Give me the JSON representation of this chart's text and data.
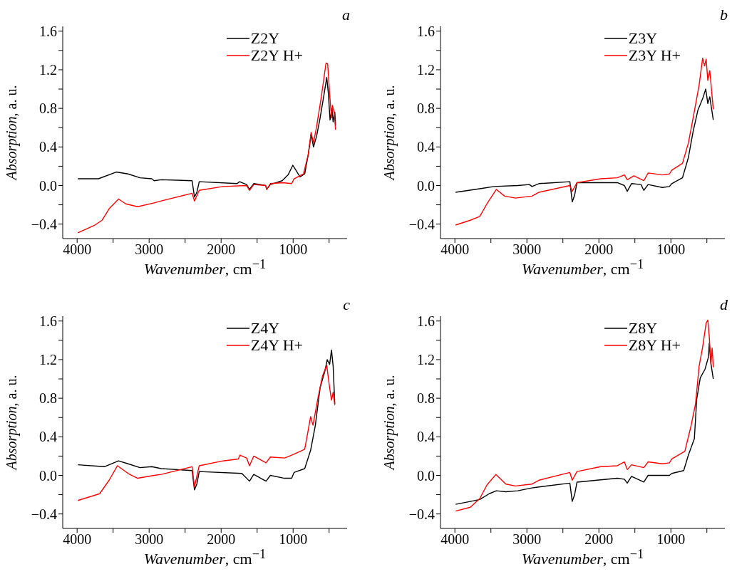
{
  "chart_data": [
    {
      "type": "line",
      "title": "a",
      "xlabel": "Wavenumber, cm$^{−1}$",
      "ylabel": "Absorption, a. u.",
      "xlim": [
        4200,
        250
      ],
      "ylim": [
        -0.55,
        1.65
      ],
      "xticks": [
        4000,
        {
          "value": 3500,
          "label": null
        },
        3000,
        {
          "value": 2500,
          "label": null
        },
        2000,
        {
          "value": 1500,
          "label": null
        },
        1000,
        {
          "value": 500,
          "label": null
        }
      ],
      "yticks": [
        -0.4,
        {
          "value": -0.2,
          "label": null
        },
        {
          "value": 0,
          "label": "0.0"
        },
        {
          "value": 0.2,
          "label": null
        },
        0.4,
        {
          "value": 0.6,
          "label": null
        },
        0.8,
        {
          "value": 1.0,
          "label": null
        },
        1.2,
        {
          "value": 1.4,
          "label": null
        },
        1.6
      ],
      "legend": "top right",
      "series": [
        {
          "name": "Z2Y",
          "color": "#000000",
          "x": [
            3990,
            3704,
            3457,
            3292,
            3127,
            2963,
            2930,
            2831,
            2403,
            2370,
            2337,
            2304,
            1777,
            1744,
            1646,
            1606,
            1547,
            1382,
            1366,
            1316,
            1152,
            1070,
            1004,
            954,
            905,
            839,
            790,
            750,
            717,
            674,
            625,
            576,
            533,
            510,
            487,
            460,
            444,
            421,
            411
          ],
          "values": [
            0.07,
            0.07,
            0.14,
            0.12,
            0.08,
            0.07,
            0.05,
            0.06,
            0.05,
            -0.12,
            -0.07,
            0.04,
            0.02,
            0.04,
            0.01,
            -0.04,
            0.02,
            0.0,
            -0.04,
            0.01,
            0.05,
            0.11,
            0.21,
            0.15,
            0.09,
            0.12,
            0.32,
            0.53,
            0.4,
            0.51,
            0.7,
            0.92,
            1.12,
            0.95,
            0.68,
            0.8,
            0.66,
            0.76,
            0.63
          ]
        },
        {
          "name": "Z2Y H+",
          "color": "#ff0000",
          "x": [
            3990,
            3753,
            3654,
            3555,
            3424,
            3325,
            3160,
            2930,
            2831,
            2403,
            2370,
            2304,
            1975,
            1646,
            1606,
            1547,
            1382,
            1366,
            1316,
            1152,
            1020,
            987,
            856,
            790,
            750,
            717,
            674,
            608,
            543,
            520,
            493,
            467,
            454,
            427,
            411
          ],
          "values": [
            -0.49,
            -0.41,
            -0.36,
            -0.24,
            -0.14,
            -0.19,
            -0.22,
            -0.18,
            -0.16,
            -0.08,
            -0.16,
            -0.05,
            -0.01,
            0.0,
            -0.05,
            0.01,
            0.0,
            -0.04,
            0.02,
            0.03,
            0.02,
            0.07,
            0.12,
            0.32,
            0.55,
            0.44,
            0.61,
            0.92,
            1.27,
            1.26,
            0.95,
            0.7,
            0.83,
            0.75,
            0.58
          ]
        }
      ]
    },
    {
      "type": "line",
      "title": "b",
      "xlabel": "Wavenumber, cm$^{−1}$",
      "ylabel": "Absorption, a. u.",
      "xlim": [
        4200,
        250
      ],
      "ylim": [
        -0.55,
        1.65
      ],
      "xticks": [
        4000,
        {
          "value": 3500,
          "label": null
        },
        3000,
        {
          "value": 2500,
          "label": null
        },
        2000,
        {
          "value": 1500,
          "label": null
        },
        1000,
        {
          "value": 500,
          "label": null
        }
      ],
      "yticks": [
        -0.4,
        {
          "value": -0.2,
          "label": null
        },
        {
          "value": 0,
          "label": "0.0"
        },
        {
          "value": 0.2,
          "label": null
        },
        0.4,
        {
          "value": 0.6,
          "label": null
        },
        0.8,
        {
          "value": 1.0,
          "label": null
        },
        1.2,
        {
          "value": 1.4,
          "label": null
        },
        1.6
      ],
      "legend": "top right",
      "series": [
        {
          "name": "Z3Y",
          "color": "#000000",
          "x": [
            3990,
            3621,
            3457,
            3127,
            2963,
            2930,
            2831,
            2403,
            2370,
            2337,
            2304,
            1744,
            1646,
            1606,
            1547,
            1415,
            1376,
            1316,
            1119,
            1020,
            987,
            839,
            757,
            691,
            625,
            559,
            516,
            487,
            460,
            411
          ],
          "values": [
            -0.07,
            -0.03,
            -0.01,
            0.0,
            0.01,
            -0.01,
            0.02,
            0.04,
            -0.17,
            -0.1,
            0.03,
            0.03,
            0.0,
            -0.06,
            0.02,
            0.01,
            -0.05,
            0.01,
            -0.02,
            -0.01,
            0.02,
            0.08,
            0.29,
            0.56,
            0.78,
            0.9,
            1.0,
            0.85,
            0.92,
            0.68
          ]
        },
        {
          "name": "Z3Y H+",
          "color": "#ff0000",
          "x": [
            3990,
            3786,
            3654,
            3555,
            3424,
            3309,
            3160,
            2930,
            2831,
            2403,
            2370,
            2304,
            1975,
            1744,
            1646,
            1606,
            1514,
            1376,
            1316,
            1119,
            1020,
            987,
            839,
            757,
            691,
            608,
            559,
            533,
            510,
            487,
            460,
            411
          ],
          "values": [
            -0.41,
            -0.36,
            -0.32,
            -0.19,
            -0.04,
            -0.11,
            -0.13,
            -0.11,
            -0.07,
            0.0,
            -0.06,
            0.03,
            0.07,
            0.08,
            0.11,
            0.06,
            0.1,
            0.05,
            0.13,
            0.11,
            0.12,
            0.16,
            0.23,
            0.44,
            0.7,
            1.04,
            1.32,
            1.24,
            1.31,
            1.09,
            1.19,
            0.79
          ]
        }
      ]
    },
    {
      "type": "line",
      "title": "c",
      "xlabel": "Wavenumber, cm$^{−1}$",
      "ylabel": "Absorption, a. u.",
      "xlim": [
        4200,
        250
      ],
      "ylim": [
        -0.55,
        1.65
      ],
      "xticks": [
        4000,
        {
          "value": 3500,
          "label": null
        },
        3000,
        {
          "value": 2500,
          "label": null
        },
        2000,
        {
          "value": 1500,
          "label": null
        },
        1000,
        {
          "value": 500,
          "label": null
        }
      ],
      "yticks": [
        -0.4,
        {
          "value": -0.2,
          "label": null
        },
        {
          "value": 0,
          "label": "0.0"
        },
        {
          "value": 0.2,
          "label": null
        },
        0.4,
        {
          "value": 0.6,
          "label": null
        },
        0.8,
        {
          "value": 1.0,
          "label": null
        },
        1.2,
        {
          "value": 1.4,
          "label": null
        },
        1.6
      ],
      "legend": "top right",
      "series": [
        {
          "name": "Z4Y",
          "color": "#000000",
          "x": [
            3990,
            3621,
            3424,
            3292,
            3127,
            2963,
            2831,
            2403,
            2370,
            2337,
            2304,
            1712,
            1606,
            1547,
            1376,
            1316,
            1119,
            1020,
            987,
            839,
            757,
            691,
            625,
            559,
            526,
            493,
            467,
            444,
            421
          ],
          "values": [
            0.11,
            0.09,
            0.15,
            0.12,
            0.08,
            0.09,
            0.07,
            0.05,
            -0.15,
            -0.09,
            0.04,
            0.02,
            -0.06,
            0.01,
            -0.06,
            0.0,
            -0.03,
            -0.03,
            0.03,
            0.07,
            0.26,
            0.52,
            0.91,
            1.08,
            1.2,
            1.15,
            1.3,
            1.13,
            0.74
          ]
        },
        {
          "name": "Z4Y H+",
          "color": "#ff0000",
          "x": [
            3990,
            3687,
            3555,
            3440,
            3292,
            3160,
            2930,
            2831,
            2403,
            2370,
            2304,
            1975,
            1761,
            1738,
            1646,
            1606,
            1547,
            1376,
            1316,
            1119,
            1020,
            839,
            790,
            757,
            724,
            658,
            592,
            533,
            493,
            467,
            444,
            421
          ],
          "values": [
            -0.26,
            -0.19,
            -0.05,
            0.1,
            0.02,
            -0.03,
            0.0,
            0.01,
            0.09,
            -0.12,
            0.1,
            0.15,
            0.17,
            0.21,
            0.18,
            0.1,
            0.2,
            0.13,
            0.19,
            0.18,
            0.21,
            0.27,
            0.47,
            0.61,
            0.52,
            0.79,
            1.03,
            1.14,
            0.91,
            0.78,
            0.86,
            0.73
          ]
        }
      ]
    },
    {
      "type": "line",
      "title": "d",
      "xlabel": "Wavenumber, cm$^{−1}$",
      "ylabel": "Absorption, a. u.",
      "xlim": [
        4200,
        250
      ],
      "ylim": [
        -0.55,
        1.65
      ],
      "xticks": [
        4000,
        {
          "value": 3500,
          "label": null
        },
        3000,
        {
          "value": 2500,
          "label": null
        },
        2000,
        {
          "value": 1500,
          "label": null
        },
        1000,
        {
          "value": 500,
          "label": null
        }
      ],
      "yticks": [
        -0.4,
        {
          "value": -0.2,
          "label": null
        },
        {
          "value": 0,
          "label": "0.0"
        },
        {
          "value": 0.2,
          "label": null
        },
        0.4,
        {
          "value": 0.6,
          "label": null
        },
        0.8,
        {
          "value": 1.0,
          "label": null
        },
        1.2,
        {
          "value": 1.4,
          "label": null
        },
        1.6
      ],
      "legend": "top right",
      "series": [
        {
          "name": "Z8Y",
          "color": "#000000",
          "x": [
            3990,
            3786,
            3654,
            3523,
            3424,
            3292,
            3127,
            2930,
            2831,
            2403,
            2370,
            2337,
            2304,
            1744,
            1646,
            1606,
            1547,
            1376,
            1316,
            1119,
            1020,
            987,
            822,
            757,
            674,
            641,
            592,
            526,
            477,
            467,
            444,
            411
          ],
          "values": [
            -0.3,
            -0.27,
            -0.25,
            -0.19,
            -0.16,
            -0.17,
            -0.16,
            -0.13,
            -0.12,
            -0.08,
            -0.27,
            -0.2,
            -0.07,
            -0.03,
            -0.04,
            -0.08,
            -0.01,
            -0.07,
            0.0,
            0.0,
            0.0,
            0.02,
            0.05,
            0.21,
            0.38,
            0.79,
            1.01,
            1.1,
            1.23,
            1.37,
            1.16,
            1.0
          ]
        },
        {
          "name": "Z8Y H+",
          "color": "#ff0000",
          "x": [
            3990,
            3786,
            3654,
            3555,
            3430,
            3292,
            3160,
            2930,
            2831,
            2403,
            2370,
            2304,
            1975,
            1744,
            1646,
            1606,
            1547,
            1376,
            1316,
            1119,
            1020,
            987,
            806,
            724,
            658,
            608,
            559,
            510,
            487,
            467,
            444,
            427,
            411
          ],
          "values": [
            -0.37,
            -0.33,
            -0.24,
            -0.1,
            0.01,
            -0.09,
            -0.11,
            -0.09,
            -0.05,
            0.03,
            -0.05,
            0.04,
            0.09,
            0.1,
            0.14,
            0.06,
            0.11,
            0.08,
            0.14,
            0.12,
            0.13,
            0.17,
            0.25,
            0.5,
            0.74,
            1.13,
            1.33,
            1.58,
            1.61,
            1.44,
            1.15,
            1.32,
            1.12
          ]
        }
      ]
    }
  ]
}
